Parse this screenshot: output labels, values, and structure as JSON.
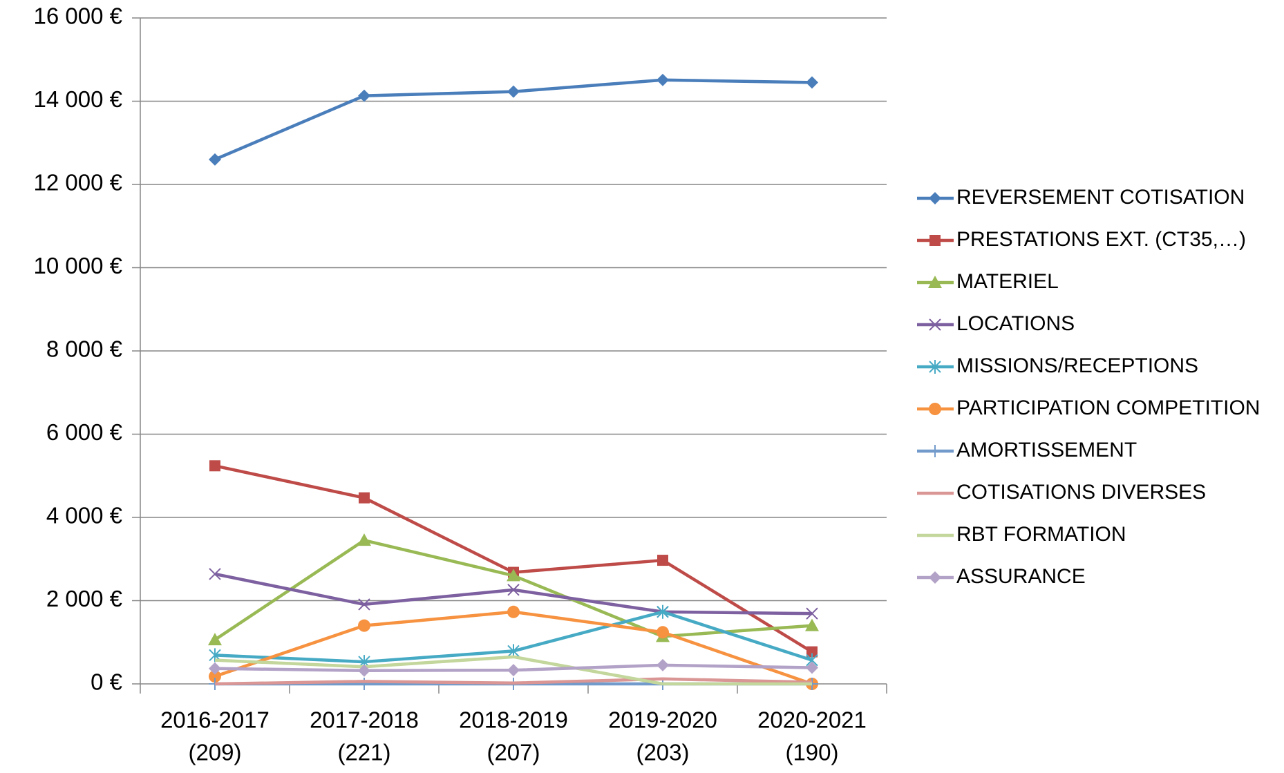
{
  "chart_data": {
    "type": "line",
    "categories": [
      [
        "2016-2017",
        "(209)"
      ],
      [
        "2017-2018",
        "(221)"
      ],
      [
        "2018-2019",
        "(207)"
      ],
      [
        "2019-2020",
        "(203)"
      ],
      [
        "2020-2021",
        "(190)"
      ]
    ],
    "ylim": [
      0,
      16000
    ],
    "yticks": [
      {
        "value": 0,
        "label": "0 €"
      },
      {
        "value": 2000,
        "label": "2 000 €"
      },
      {
        "value": 4000,
        "label": "4 000 €"
      },
      {
        "value": 6000,
        "label": "6 000 €"
      },
      {
        "value": 8000,
        "label": "8 000 €"
      },
      {
        "value": 10000,
        "label": "10 000 €"
      },
      {
        "value": 12000,
        "label": "12 000 €"
      },
      {
        "value": 14000,
        "label": "14 000 €"
      },
      {
        "value": 16000,
        "label": "16 000 €"
      }
    ],
    "grid": true,
    "legend": "right",
    "series": [
      {
        "name": "REVERSEMENT COTISATION",
        "color": "#4a7ebb",
        "marker": "diamond",
        "values": [
          12600,
          14130,
          14230,
          14510,
          14450
        ]
      },
      {
        "name": "PRESTATIONS EXT. (CT35,…)",
        "color": "#be4b48",
        "marker": "square",
        "values": [
          5240,
          4470,
          2680,
          2970,
          770
        ]
      },
      {
        "name": "MATERIEL",
        "color": "#98b954",
        "marker": "triangle",
        "values": [
          1060,
          3450,
          2600,
          1140,
          1400
        ]
      },
      {
        "name": "LOCATIONS",
        "color": "#7d60a0",
        "marker": "x",
        "values": [
          2640,
          1910,
          2260,
          1730,
          1690
        ]
      },
      {
        "name": "MISSIONS/RECEPTIONS",
        "color": "#46aac5",
        "marker": "star",
        "values": [
          690,
          530,
          790,
          1730,
          570
        ]
      },
      {
        "name": "PARTICIPATION COMPETITION",
        "color": "#f69240",
        "marker": "circle",
        "values": [
          180,
          1400,
          1730,
          1240,
          0
        ]
      },
      {
        "name": "AMORTISSEMENT",
        "color": "#729aca",
        "marker": "plus",
        "values": [
          0,
          0,
          0,
          0,
          0
        ]
      },
      {
        "name": "COTISATIONS DIVERSES",
        "color": "#d99694",
        "marker": "none",
        "values": [
          0,
          60,
          20,
          120,
          40
        ]
      },
      {
        "name": "RBT FORMATION",
        "color": "#c3d69b",
        "marker": "none",
        "values": [
          570,
          410,
          650,
          0,
          0
        ]
      },
      {
        "name": "ASSURANCE",
        "color": "#b3a2c7",
        "marker": "diamond",
        "values": [
          370,
          320,
          330,
          450,
          390
        ]
      }
    ]
  }
}
